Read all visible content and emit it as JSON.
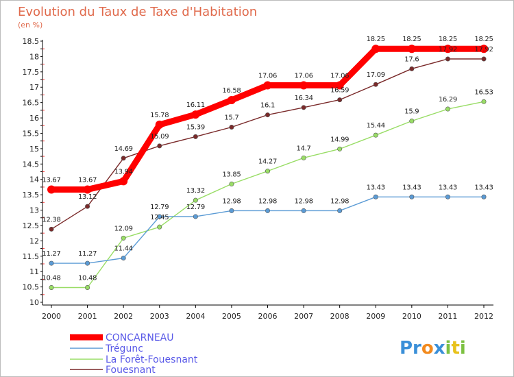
{
  "chart_data": {
    "type": "line",
    "title": "Evolution du Taux de Taxe d'Habitation",
    "subtitle": "(en %)",
    "x": [
      "2000",
      "2001",
      "2002",
      "2003",
      "2004",
      "2005",
      "2006",
      "2007",
      "2008",
      "2009",
      "2010",
      "2011",
      "2012"
    ],
    "ylim": [
      10,
      18.5
    ],
    "yticks": [
      "10",
      "10.5",
      "11",
      "11.5",
      "12",
      "12.5",
      "13",
      "13.5",
      "14",
      "14.5",
      "15",
      "15.5",
      "16",
      "16.5",
      "17",
      "17.5",
      "18",
      "18.5"
    ],
    "grid": false,
    "legend_position": "bottom-left",
    "series": [
      {
        "name": "CONCARNEAU",
        "color": "#ff0000",
        "values": [
          13.67,
          13.67,
          13.94,
          15.78,
          16.11,
          16.58,
          17.06,
          17.06,
          17.06,
          18.25,
          18.25,
          18.25,
          18.25
        ]
      },
      {
        "name": "Trégunc",
        "color": "#5b9bd5",
        "values": [
          11.27,
          11.27,
          11.44,
          12.79,
          12.79,
          12.98,
          12.98,
          12.98,
          12.98,
          13.43,
          13.43,
          13.43,
          13.43
        ]
      },
      {
        "name": "La Forêt-Fouesnant",
        "color": "#99dd66",
        "values": [
          10.48,
          10.48,
          12.09,
          12.45,
          13.32,
          13.85,
          14.27,
          14.7,
          14.99,
          15.44,
          15.9,
          16.29,
          16.53
        ]
      },
      {
        "name": "Fouesnant",
        "color": "#7a2a2a",
        "values": [
          12.38,
          13.12,
          14.69,
          15.09,
          15.39,
          15.7,
          16.1,
          16.34,
          16.59,
          17.09,
          17.6,
          17.92,
          17.92
        ]
      }
    ]
  },
  "logo": {
    "text": "Proxiti"
  }
}
